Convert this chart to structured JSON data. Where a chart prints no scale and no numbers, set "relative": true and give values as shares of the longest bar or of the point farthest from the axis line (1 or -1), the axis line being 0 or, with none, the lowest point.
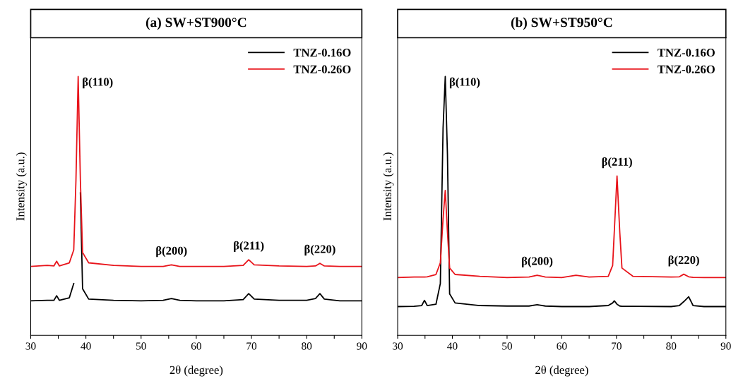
{
  "chart_data": [
    {
      "type": "line",
      "title": "(a) SW+ST900°C",
      "xlabel": "2θ (degree)",
      "ylabel": "Intensity (a.u.)",
      "relative": true,
      "legend": "top right",
      "tick_labels": "x",
      "grid": false,
      "x": [
        30,
        33,
        34.2,
        34.7,
        35.2,
        37,
        37.8,
        38.2,
        38.6,
        39.0,
        39.4,
        40.5,
        45,
        50,
        54,
        55.5,
        57,
        60,
        65,
        68.5,
        69.5,
        70.5,
        75,
        80,
        81.6,
        82.4,
        83.2,
        86,
        90
      ],
      "xlim": [
        30,
        90
      ],
      "xticks": [
        30,
        {
          "value": 35,
          "label": null
        },
        40,
        {
          "value": 45,
          "label": null
        },
        50,
        {
          "value": 55,
          "label": null
        },
        60,
        {
          "value": 65,
          "label": null
        },
        70,
        {
          "value": 75,
          "label": null
        },
        80,
        {
          "value": 85,
          "label": null
        },
        90
      ],
      "series": [
        {
          "name": "TNZ-0.16O",
          "color": "#000000",
          "values": [
            0.133,
            0.135,
            0.135,
            0.153,
            0.135,
            0.145,
            0.2,
            null,
            null,
            0.55,
            0.18,
            0.14,
            0.135,
            0.133,
            0.135,
            0.142,
            0.135,
            0.133,
            0.133,
            0.138,
            0.161,
            0.14,
            0.135,
            0.135,
            0.142,
            0.161,
            0.14,
            0.133,
            0.133
          ]
        },
        {
          "name": "TNZ-0.26O",
          "color": "#e8141b",
          "values": [
            0.266,
            0.27,
            0.268,
            0.286,
            0.268,
            0.28,
            0.33,
            0.6,
            1.0,
            0.6,
            0.32,
            0.28,
            0.27,
            0.266,
            0.266,
            0.272,
            0.266,
            0.266,
            0.266,
            0.27,
            0.292,
            0.272,
            0.268,
            0.266,
            0.268,
            0.278,
            0.268,
            0.266,
            0.266
          ]
        }
      ],
      "annotations": [
        {
          "text": "β(110)",
          "x": 38.6,
          "y": 1.0
        },
        {
          "text": "β(200)",
          "x": 55.5,
          "y": 0.272
        },
        {
          "text": "β(211)",
          "x": 69.5,
          "y": 0.292
        },
        {
          "text": "β(220)",
          "x": 82.4,
          "y": 0.278
        }
      ]
    },
    {
      "type": "line",
      "title": "(b) SW+ST950°C",
      "xlabel": "2θ (degree)",
      "ylabel": "Intensity (a.u.)",
      "relative": true,
      "legend": "top right",
      "tick_labels": "x",
      "grid": false,
      "x": [
        30,
        33,
        34.4,
        34.9,
        35.4,
        37,
        37.8,
        38.3,
        38.7,
        39.1,
        39.5,
        40.5,
        45,
        50,
        54,
        55.5,
        57,
        60,
        62.6,
        65,
        68.5,
        69.3,
        69.6,
        70.1,
        70.6,
        71,
        73,
        80,
        81.5,
        82.3,
        83.2,
        84,
        86,
        90
      ],
      "xlim": [
        30,
        90
      ],
      "xticks": [
        30,
        {
          "value": 35,
          "label": null
        },
        40,
        {
          "value": 45,
          "label": null
        },
        50,
        {
          "value": 55,
          "label": null
        },
        60,
        {
          "value": 65,
          "label": null
        },
        70,
        {
          "value": 75,
          "label": null
        },
        80,
        {
          "value": 85,
          "label": null
        },
        90
      ],
      "series": [
        {
          "name": "TNZ-0.16O",
          "color": "#000000",
          "values": [
            0.111,
            0.112,
            0.115,
            0.135,
            0.115,
            0.12,
            0.2,
            0.8,
            1.0,
            0.7,
            0.16,
            0.125,
            0.115,
            0.113,
            0.113,
            0.118,
            0.113,
            0.111,
            0.111,
            0.111,
            0.115,
            0.125,
            0.133,
            0.12,
            0.113,
            0.112,
            0.112,
            0.111,
            0.115,
            0.13,
            0.149,
            0.115,
            0.111,
            0.111
          ]
        },
        {
          "name": "TNZ-0.26O",
          "color": "#e8141b",
          "values": [
            0.223,
            0.225,
            0.225,
            0.225,
            0.226,
            0.235,
            0.28,
            0.45,
            0.56,
            0.4,
            0.26,
            0.235,
            0.228,
            0.223,
            0.225,
            0.232,
            0.225,
            0.223,
            0.232,
            0.225,
            0.228,
            0.27,
            0.4,
            0.616,
            0.4,
            0.26,
            0.228,
            0.225,
            0.226,
            0.236,
            0.226,
            0.224,
            0.223,
            0.223
          ]
        }
      ],
      "annotations": [
        {
          "text": "β(110)",
          "x": 38.7,
          "y": 1.0
        },
        {
          "text": "β(200)",
          "x": 55.5,
          "y": 0.232
        },
        {
          "text": "β(211)",
          "x": 70.1,
          "y": 0.616
        },
        {
          "text": "β(220)",
          "x": 82.3,
          "y": 0.236
        }
      ]
    }
  ]
}
